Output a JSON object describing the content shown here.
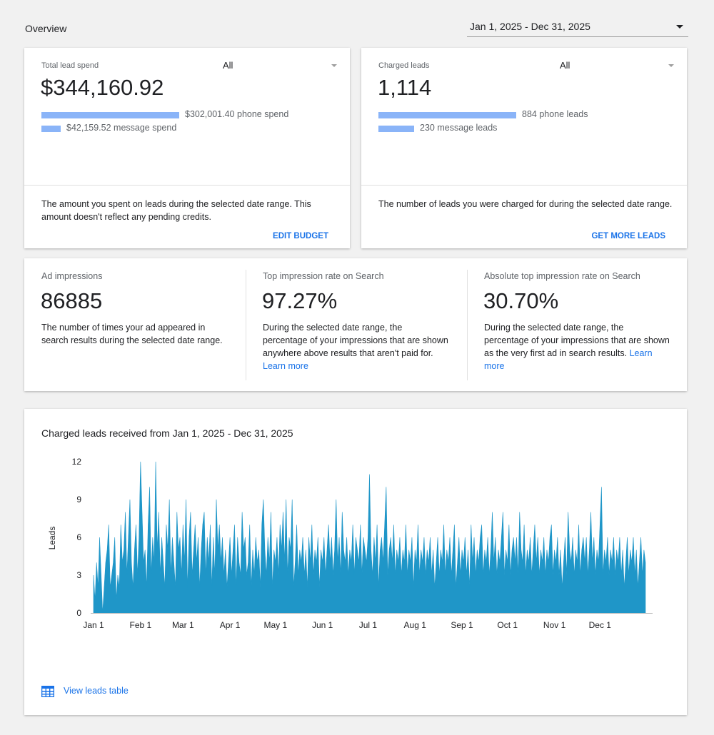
{
  "header": {
    "title": "Overview",
    "date_range": "Jan 1, 2025 - Dec 31, 2025"
  },
  "spend_card": {
    "label": "Total lead spend",
    "filter": "All",
    "value": "$344,160.92",
    "rows": [
      {
        "text": "$302,001.40 phone spend",
        "amount": 302001.4
      },
      {
        "text": "$42,159.52 message spend",
        "amount": 42159.52
      }
    ],
    "description": "The amount you spent on leads during the selected date range. This amount doesn't reflect any pending credits.",
    "action": "EDIT BUDGET"
  },
  "leads_card": {
    "label": "Charged leads",
    "filter": "All",
    "value": "1,114",
    "rows": [
      {
        "text": "884 phone leads",
        "amount": 884
      },
      {
        "text": "230 message leads",
        "amount": 230
      }
    ],
    "description": "The number of leads you were charged for during the selected date range.",
    "action": "GET MORE LEADS"
  },
  "metrics": [
    {
      "label": "Ad impressions",
      "value": "86885",
      "description": "The number of times your ad appeared in search results during the selected date range.",
      "link": ""
    },
    {
      "label": "Top impression rate on Search",
      "value": "97.27%",
      "description": "During the selected date range, the percentage of your impressions that are shown anywhere above results that aren't paid for.",
      "link": "Learn more"
    },
    {
      "label": "Absolute top impression rate on Search",
      "value": "30.70%",
      "description": "During the selected date range, the percentage of your impressions that are shown as the very first ad in search results.",
      "link": "Learn more"
    }
  ],
  "chart_section": {
    "title": "Charged leads received from Jan 1, 2025 - Dec 31, 2025",
    "view_table": "View leads table"
  },
  "colors": {
    "accent": "#1a73e8",
    "bar_light": "#8ab4f8",
    "chart_fill": "#1f96c8"
  },
  "icons": {
    "date_caret": "caret-down-icon",
    "table": "table-icon"
  },
  "chart_data": {
    "type": "area",
    "title": "",
    "xlabel": "",
    "ylabel": "Leads",
    "ylim": [
      0,
      12
    ],
    "yticks": [
      0,
      3,
      6,
      9,
      12
    ],
    "x_tick_labels": [
      "Jan 1",
      "Feb 1",
      "Mar 1",
      "Apr 1",
      "May 1",
      "Jun 1",
      "Jul 1",
      "Aug 1",
      "Sep 1",
      "Oct 1",
      "Nov 1",
      "Dec 1"
    ],
    "x_tick_days": [
      0,
      31,
      59,
      90,
      120,
      151,
      181,
      212,
      243,
      273,
      304,
      334
    ],
    "grid": false,
    "legend": "none",
    "series": [
      {
        "values": [
          3,
          1,
          4,
          2,
          6,
          3,
          0,
          2,
          4,
          5,
          7,
          2,
          3,
          4,
          6,
          1,
          3,
          2,
          7,
          4,
          5,
          8,
          3,
          6,
          9,
          4,
          2,
          5,
          7,
          3,
          6,
          12,
          8,
          4,
          5,
          2,
          7,
          10,
          3,
          6,
          4,
          12,
          5,
          8,
          3,
          6,
          4,
          2,
          7,
          5,
          9,
          3,
          6,
          4,
          2,
          8,
          5,
          6,
          3,
          7,
          4,
          9,
          2,
          6,
          8,
          3,
          5,
          7,
          4,
          6,
          2,
          5,
          7,
          8,
          3,
          6,
          4,
          7,
          2,
          6,
          3,
          9,
          5,
          7,
          4,
          6,
          3,
          5,
          2,
          4,
          6,
          3,
          5,
          7,
          2,
          6,
          4,
          3,
          8,
          5,
          6,
          3,
          4,
          7,
          2,
          5,
          3,
          6,
          4,
          5,
          2,
          7,
          9,
          5,
          3,
          6,
          4,
          8,
          2,
          5,
          4,
          6,
          3,
          7,
          5,
          8,
          4,
          9,
          3,
          6,
          5,
          9,
          2,
          4,
          7,
          3,
          5,
          4,
          6,
          3,
          5,
          2,
          6,
          4,
          7,
          3,
          5,
          4,
          6,
          2,
          5,
          4,
          6,
          3,
          5,
          7,
          4,
          6,
          3,
          5,
          9,
          4,
          6,
          3,
          8,
          5,
          4,
          6,
          3,
          5,
          4,
          7,
          3,
          6,
          5,
          4,
          7,
          3,
          6,
          5,
          4,
          6,
          11,
          5,
          3,
          6,
          4,
          7,
          2,
          5,
          6,
          4,
          7,
          10,
          3,
          5,
          6,
          4,
          7,
          3,
          5,
          4,
          6,
          3,
          5,
          4,
          7,
          3,
          5,
          4,
          6,
          2,
          5,
          4,
          7,
          3,
          5,
          4,
          6,
          3,
          5,
          4,
          6,
          3,
          5,
          2,
          4,
          6,
          3,
          5,
          4,
          7,
          3,
          5,
          4,
          6,
          3,
          5,
          7,
          2,
          4,
          6,
          3,
          5,
          4,
          6,
          3,
          5,
          2,
          7,
          4,
          6,
          3,
          5,
          4,
          6,
          7,
          3,
          5,
          4,
          6,
          3,
          5,
          8,
          4,
          6,
          3,
          5,
          4,
          6,
          8,
          3,
          5,
          4,
          7,
          3,
          5,
          6,
          4,
          6,
          3,
          8,
          5,
          4,
          7,
          3,
          5,
          4,
          6,
          3,
          5,
          7,
          4,
          6,
          3,
          5,
          4,
          6,
          3,
          5,
          4,
          6,
          7,
          3,
          5,
          4,
          6,
          3,
          5,
          2,
          4,
          6,
          3,
          8,
          5,
          4,
          6,
          3,
          5,
          4,
          7,
          3,
          5,
          6,
          4,
          6,
          3,
          5,
          8,
          4,
          6,
          3,
          5,
          4,
          7,
          10,
          3,
          5,
          4,
          6,
          3,
          5,
          4,
          6,
          3,
          5,
          4,
          6,
          3,
          5,
          2,
          4,
          6,
          3,
          5,
          4,
          6,
          3,
          5,
          2,
          4,
          6,
          3,
          5,
          4
        ]
      }
    ]
  }
}
